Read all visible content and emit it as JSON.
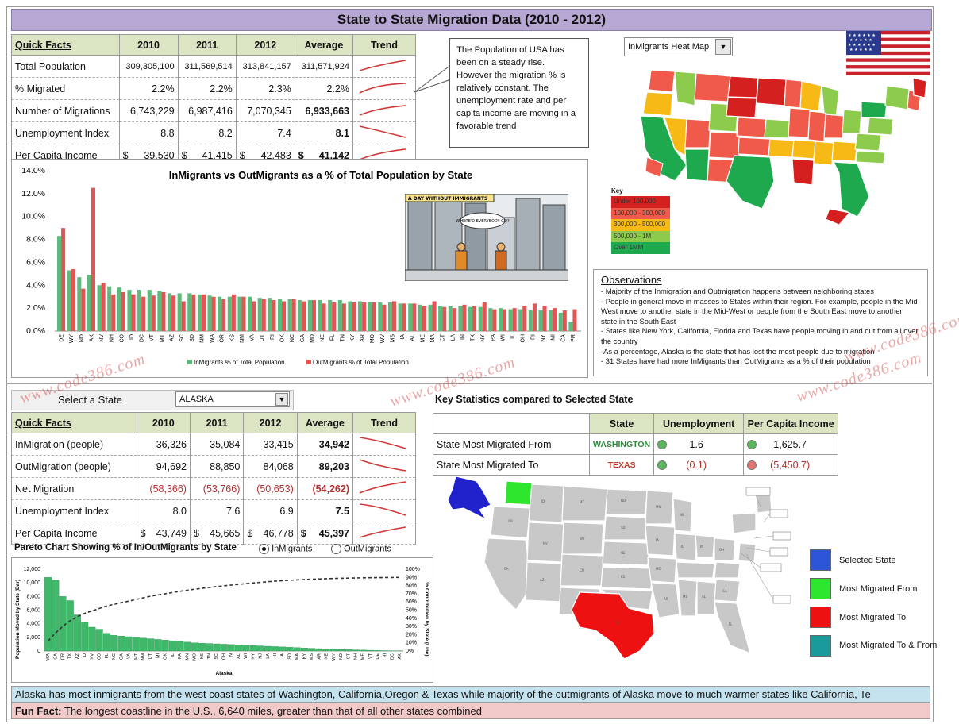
{
  "title": "State to State Migration Data (2010 - 2012)",
  "quick_facts": {
    "header": [
      "Quick Facts",
      "2010",
      "2011",
      "2012",
      "Average",
      "Trend"
    ],
    "rows": [
      {
        "label": "Total Population",
        "v2010": "309,305,100",
        "v2011": "311,569,514",
        "v2012": "313,841,157",
        "avg": "311,571,924"
      },
      {
        "label": "% Migrated",
        "v2010": "2.2%",
        "v2011": "2.2%",
        "v2012": "2.3%",
        "avg": "2.2%"
      },
      {
        "label": "Number of Migrations",
        "v2010": "6,743,229",
        "v2011": "6,987,416",
        "v2012": "7,070,345",
        "avg": "6,933,663"
      },
      {
        "label": "Unemployment Index",
        "v2010": "8.8",
        "v2011": "8.2",
        "v2012": "7.4",
        "avg": "8.1"
      },
      {
        "label": "Per Capita Income",
        "cur": "$",
        "v2010": "39,530",
        "v2011": "41,415",
        "v2012": "42,483",
        "avg": "41,142"
      }
    ]
  },
  "callout": "The Population of USA has been on a steady rise. However the migration % is relatively constant. The unemployment rate and per capita income are moving in a favorable trend",
  "heatmap_dropdown": "InMigrants Heat Map",
  "key": {
    "title": "Key",
    "items": [
      {
        "label": "Under 100,000",
        "color": "#d4201f"
      },
      {
        "label": "100,000 - 300,000",
        "color": "#f05a4a"
      },
      {
        "label": "300,000 - 500,000",
        "color": "#f7b915"
      },
      {
        "label": "500,000 - 1M",
        "color": "#8ccb4c"
      },
      {
        "label": "Over 1MM",
        "color": "#1fa94f"
      }
    ]
  },
  "cartoon": {
    "caption": "A DAY WITHOUT IMMIGRANTS",
    "bubble": "WHERE'D EVERYBODY GO?"
  },
  "chart_data": [
    {
      "type": "bar",
      "title": "InMigrants vs OutMigrants as a % of Total Population by State",
      "ylim": [
        0,
        14
      ],
      "yticks": [
        "0.0%",
        "2.0%",
        "4.0%",
        "6.0%",
        "8.0%",
        "10.0%",
        "12.0%",
        "14.0%"
      ],
      "categories": [
        "DE",
        "WY",
        "ND",
        "AK",
        "NV",
        "NH",
        "CO",
        "ID",
        "DC",
        "VT",
        "MT",
        "AZ",
        "SC",
        "SD",
        "NM",
        "WA",
        "OR",
        "KS",
        "NM",
        "VA",
        "UT",
        "RI",
        "OK",
        "NC",
        "GA",
        "MD",
        "NE",
        "FL",
        "TN",
        "KY",
        "AR",
        "MO",
        "WV",
        "MS",
        "IA",
        "AL",
        "ME",
        "MA",
        "CT",
        "LA",
        "IN",
        "TX",
        "NY",
        "PA",
        "WI",
        "IL",
        "OH",
        "RI",
        "NY",
        "MI",
        "CA",
        "PR"
      ],
      "series": [
        {
          "name": "InMigrants % of Total Population",
          "color": "#5cba7a",
          "values": [
            8.3,
            5.3,
            4.7,
            4.9,
            4.0,
            3.9,
            3.8,
            3.6,
            3.6,
            3.6,
            3.5,
            3.3,
            3.3,
            3.3,
            3.2,
            3.1,
            3.0,
            3.0,
            3.0,
            3.0,
            2.9,
            2.9,
            2.8,
            2.8,
            2.7,
            2.7,
            2.7,
            2.7,
            2.7,
            2.6,
            2.6,
            2.5,
            2.5,
            2.5,
            2.4,
            2.4,
            2.3,
            2.3,
            2.2,
            2.2,
            2.2,
            2.1,
            2.1,
            2.0,
            2.0,
            1.9,
            1.9,
            1.8,
            1.8,
            1.8,
            1.6,
            0.8
          ]
        },
        {
          "name": "OutMigrants % of Total Population",
          "color": "#e25555",
          "values": [
            9.0,
            5.4,
            3.7,
            12.5,
            4.2,
            3.2,
            3.4,
            3.2,
            3.0,
            3.1,
            3.4,
            3.1,
            2.6,
            3.2,
            3.2,
            3.0,
            2.8,
            3.2,
            3.0,
            2.6,
            2.8,
            2.7,
            2.6,
            2.8,
            2.6,
            2.7,
            2.4,
            2.5,
            2.4,
            2.5,
            2.5,
            2.5,
            2.3,
            2.6,
            2.4,
            2.4,
            2.2,
            2.6,
            2.1,
            2.0,
            2.3,
            2.2,
            2.5,
            1.9,
            1.9,
            2.0,
            2.2,
            2.4,
            2.2,
            2.0,
            1.8,
            1.9
          ]
        }
      ]
    },
    {
      "type": "bar",
      "title": "Pareto Chart Showing % of In/OutMigrants by State",
      "xlabel": "Alaska",
      "ylabel": "Population Moved by State (Bar)",
      "ylabel2": "% Contribution by State (Line)",
      "ylim": [
        0,
        12000
      ],
      "yticks": [
        "0",
        "2,000",
        "4,000",
        "6,000",
        "8,000",
        "10,000",
        "12,000"
      ],
      "y2ticks": [
        "0%",
        "10%",
        "20%",
        "30%",
        "40%",
        "50%",
        "60%",
        "70%",
        "80%",
        "90%",
        "100%"
      ],
      "categories": [
        "WA",
        "CA",
        "OR",
        "TX",
        "AZ",
        "ID",
        "NV",
        "CO",
        "FL",
        "NC",
        "GA",
        "VA",
        "MT",
        "NM",
        "UT",
        "MI",
        "OK",
        "IL",
        "PA",
        "MN",
        "MO",
        "KS",
        "TN",
        "SC",
        "OH",
        "IN",
        "AL",
        "WI",
        "NY",
        "NJ",
        "LA",
        "HI",
        "IA",
        "SD",
        "MA",
        "KY",
        "MS",
        "AR",
        "NE",
        "WY",
        "ND",
        "CT",
        "NH",
        "ME",
        "VT",
        "DE",
        "RI",
        "DC",
        "AK"
      ],
      "values": [
        10800,
        10400,
        8000,
        7400,
        5300,
        4200,
        3500,
        3200,
        2600,
        2300,
        2200,
        2100,
        2000,
        1900,
        1800,
        1700,
        1600,
        1500,
        1400,
        1300,
        1200,
        1150,
        1100,
        1050,
        1000,
        950,
        900,
        850,
        800,
        750,
        700,
        650,
        600,
        550,
        500,
        450,
        400,
        350,
        300,
        260,
        230,
        200,
        170,
        140,
        110,
        80,
        60,
        40,
        20
      ],
      "line_pct": [
        12,
        22,
        30,
        37,
        42,
        46,
        49,
        52,
        55,
        57,
        59,
        61,
        63,
        65,
        67,
        68.5,
        70,
        71.5,
        73,
        74.3,
        75.5,
        76.6,
        77.7,
        78.7,
        79.7,
        80.6,
        81.5,
        82.4,
        83.2,
        84,
        84.7,
        85.4,
        86,
        86.5,
        87,
        87.4,
        87.8,
        88.1,
        88.4,
        88.7,
        88.9,
        89.1,
        89.3,
        89.5,
        89.6,
        89.7,
        89.8,
        89.9,
        90
      ]
    }
  ],
  "chart_legend_in": "InMigrants % of Total Population",
  "chart_legend_out": "OutMigrants % of Total Population",
  "observations": {
    "title": "Observations",
    "lines": [
      "- Majority of the Inmigration and Outmigration happens between neighboring states",
      "- People in general move in masses to States within their region. For example, people in the Mid-West move to another state in the Mid-West or people from the South East move to another state in the South East",
      "- States like New York, California, Florida and Texas have people moving in and out from all over the country",
      "-As a percentage, Alaska is the state that has lost the most people due to migration",
      "- 31 States have had more InMigrants than OutMigrants as a % of their population"
    ]
  },
  "select_state": {
    "label": "Select a State",
    "value": "ALASKA"
  },
  "state_facts": {
    "header": [
      "Quick Facts",
      "2010",
      "2011",
      "2012",
      "Average",
      "Trend"
    ],
    "rows": [
      {
        "label": "InMigration (people)",
        "v2010": "36,326",
        "v2011": "35,084",
        "v2012": "33,415",
        "avg": "34,942"
      },
      {
        "label": "OutMigration (people)",
        "v2010": "94,692",
        "v2011": "88,850",
        "v2012": "84,068",
        "avg": "89,203"
      },
      {
        "label": "Net Migration",
        "v2010": "(58,366)",
        "v2011": "(53,766)",
        "v2012": "(50,653)",
        "avg": "(54,262)"
      },
      {
        "label": "Unemployment Index",
        "v2010": "8.0",
        "v2011": "7.6",
        "v2012": "6.9",
        "avg": "7.5"
      },
      {
        "label": "Per Capita Income",
        "cur": "$",
        "v2010": "43,749",
        "v2011": "45,665",
        "v2012": "46,778",
        "avg": "45,397"
      }
    ]
  },
  "pareto_title": "Pareto Chart Showing % of In/OutMigrants by State",
  "radio_in": "InMigrants",
  "radio_out": "OutMigrants",
  "key_stats": {
    "title": "Key Statistics compared to Selected State",
    "header": [
      "",
      "State",
      "Unemployment",
      "Per Capita Income"
    ],
    "rows": [
      {
        "label": "State Most Migrated From",
        "state": "WASHINGTON",
        "state_color": "#2e8b3e",
        "unemp": "1.6",
        "income": "1,625.7",
        "unemp_dot": "#5cb85c",
        "income_dot": "#5cb85c"
      },
      {
        "label": "State Most Migrated To",
        "state": "TEXAS",
        "state_color": "#c0392b",
        "unemp": "(0.1)",
        "income": "(5,450.7)",
        "unemp_dot": "#5cb85c",
        "income_dot": "#e57373"
      }
    ]
  },
  "map_legend": [
    {
      "label": "Selected State",
      "color": "#2b55d6"
    },
    {
      "label": "Most Migrated From",
      "color": "#2ee62e"
    },
    {
      "label": "Most Migrated To",
      "color": "#ee1111"
    },
    {
      "label": "Most Migrated To & From",
      "color": "#1a9a9a"
    }
  ],
  "footer_note": "Alaska has most inmigrants from the west coast states of Washington, California,Oregon & Texas while majority of the outmigrants of Alaska move to much warmer states like California, Te",
  "fun_fact": {
    "label": "Fun Fact:",
    "text": "The longest coastline in the U.S., 6,640 miles, greater than that of all other states combined"
  },
  "watermark": "www.code386.com"
}
